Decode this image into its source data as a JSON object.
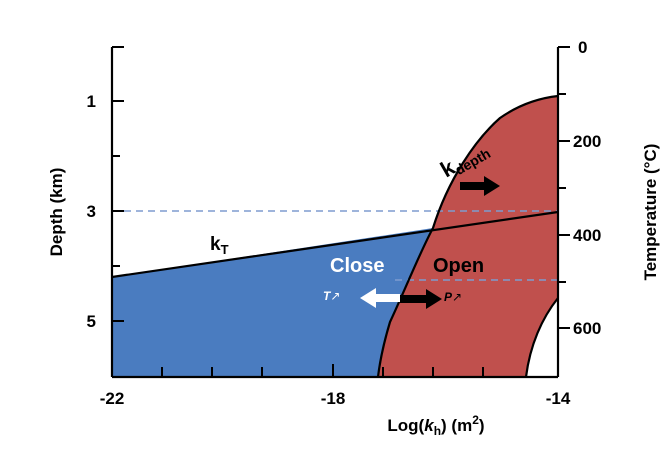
{
  "colors": {
    "close_region": "#4a7cc0",
    "open_region": "#c0504d",
    "dashed_line": "#7e9ccf",
    "axis": "#000000",
    "close_arrow": "#ffffff",
    "open_arrow": "#000000"
  },
  "axes": {
    "x_title": "Log(kh) (m²)",
    "x_title_parts": {
      "pre": "Log(",
      "var": "k",
      "sub": "h",
      "post": ") (m",
      "sup": "2",
      "end": ")"
    },
    "x_ticks": [
      "-22",
      "-18",
      "-14"
    ],
    "left_title": "Depth (km)",
    "left_ticks": [
      "1",
      "3",
      "5"
    ],
    "right_title": "Temperature (°C)",
    "right_ticks": [
      "0",
      "200",
      "400",
      "600"
    ]
  },
  "labels": {
    "close": "Close",
    "open": "Open",
    "k_t": "k",
    "k_t_sub": "T",
    "k_depth": "k",
    "k_depth_sub": "depth",
    "t_arrow": "T",
    "t_arrow_symbol": "↗",
    "p_arrow": "P",
    "p_arrow_symbol": "↗"
  }
}
